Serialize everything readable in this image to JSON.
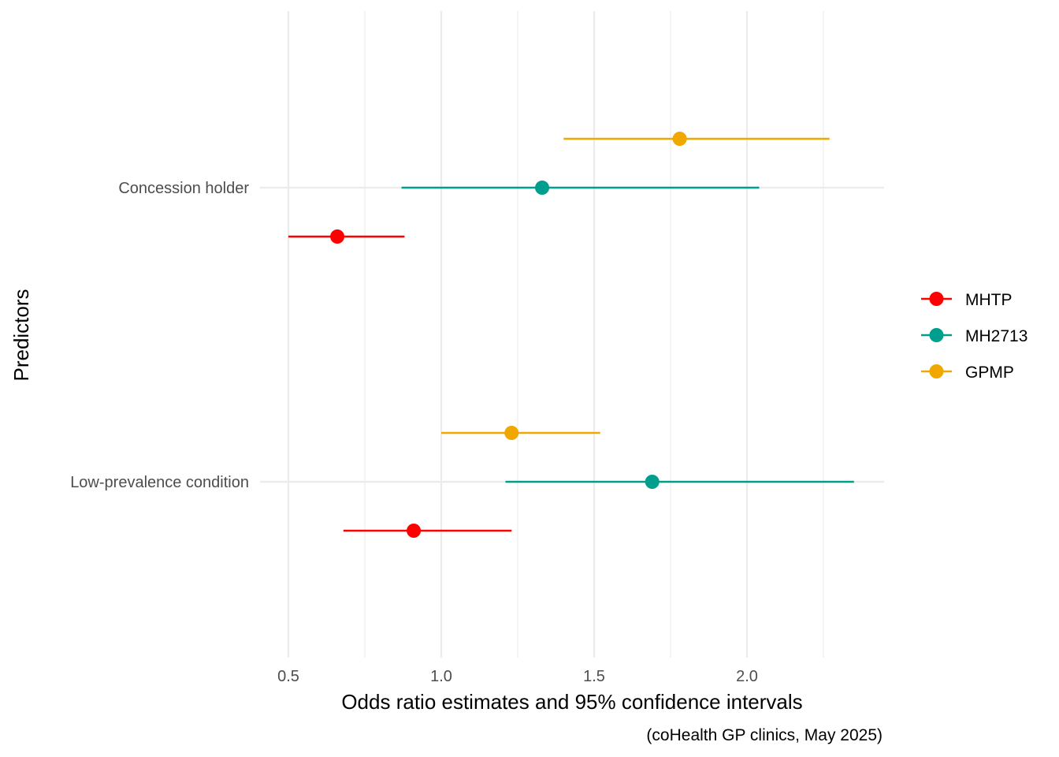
{
  "chart_data": {
    "type": "scatter",
    "subtype": "forest-plot-with-error-bars",
    "orientation": "horizontal",
    "categories": [
      "Concession holder",
      "Low-prevalence condition"
    ],
    "series": [
      {
        "name": "MHTP",
        "color": "#ff0000",
        "estimates": [
          0.66,
          0.91
        ],
        "ci_low": [
          0.5,
          0.68
        ],
        "ci_high": [
          0.88,
          1.23
        ]
      },
      {
        "name": "MH2713",
        "color": "#009e8c",
        "estimates": [
          1.33,
          1.69
        ],
        "ci_low": [
          0.87,
          1.21
        ],
        "ci_high": [
          2.04,
          2.35
        ]
      },
      {
        "name": "GPMP",
        "color": "#f0a800",
        "estimates": [
          1.78,
          1.23
        ],
        "ci_low": [
          1.4,
          1.0
        ],
        "ci_high": [
          2.27,
          1.52
        ]
      }
    ],
    "xlabel": "Odds ratio estimates and 95% confidence intervals",
    "ylabel": "Predictors",
    "caption": "(coHealth GP clinics, May 2025)",
    "x_ticks": [
      0.5,
      1.0,
      1.5,
      2.0
    ],
    "x_tick_labels": [
      "0.5",
      "1.0",
      "1.5",
      "2.0"
    ],
    "x_minor_ticks": [
      0.75,
      1.25,
      1.75,
      2.25
    ],
    "xlim": [
      0.41,
      2.44
    ],
    "grid": true,
    "legend_position": "right",
    "legend": [
      "MHTP",
      "MH2713",
      "GPMP"
    ]
  }
}
